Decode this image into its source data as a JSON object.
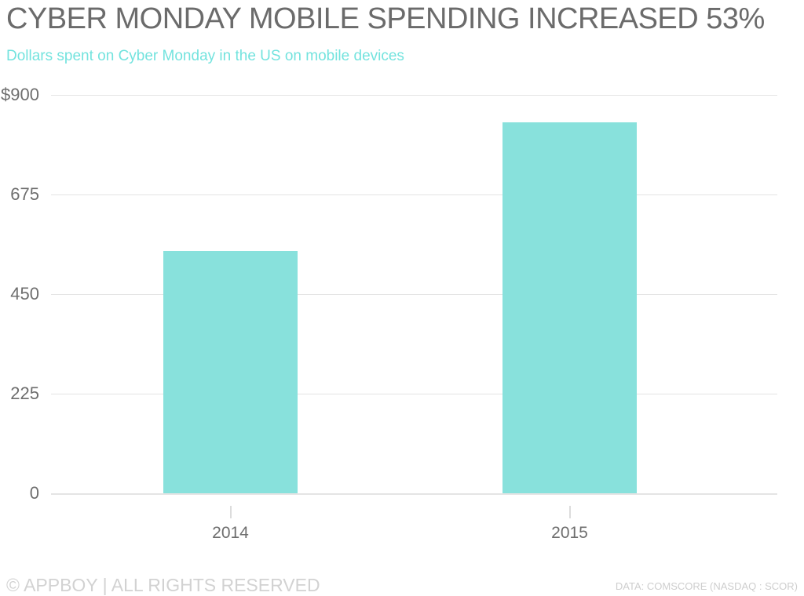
{
  "title": "CYBER MONDAY MOBILE SPENDING INCREASED 53%",
  "subtitle": "Dollars spent on Cyber Monday in the US on mobile devices",
  "footer": {
    "left": "© APPBOY | ALL RIGHTS RESERVED",
    "right": "DATA: COMSCORE (NASDAQ : SCOR)"
  },
  "colors": {
    "bar": "#88e1dc",
    "accent": "#73e3de",
    "title_text": "#6b6b6b",
    "axis_text": "#6e6e6e",
    "gridline": "#e4e4e4",
    "footer_text": "#d2d2d2"
  },
  "chart_data": {
    "type": "bar",
    "categories": [
      "2014",
      "2015"
    ],
    "values": [
      548,
      838
    ],
    "series_name": "Dollars spent on Cyber Monday in the US on mobile devices (millions USD)",
    "title": "CYBER MONDAY MOBILE SPENDING INCREASED 53%",
    "xlabel": "",
    "ylabel": "",
    "ylim": [
      0,
      900
    ],
    "yticks": {
      "values": [
        0,
        225,
        450,
        675,
        900
      ],
      "labels": [
        "0",
        "225",
        "450",
        "675",
        "$900"
      ]
    },
    "grid": true,
    "legend": false,
    "annotations": []
  }
}
